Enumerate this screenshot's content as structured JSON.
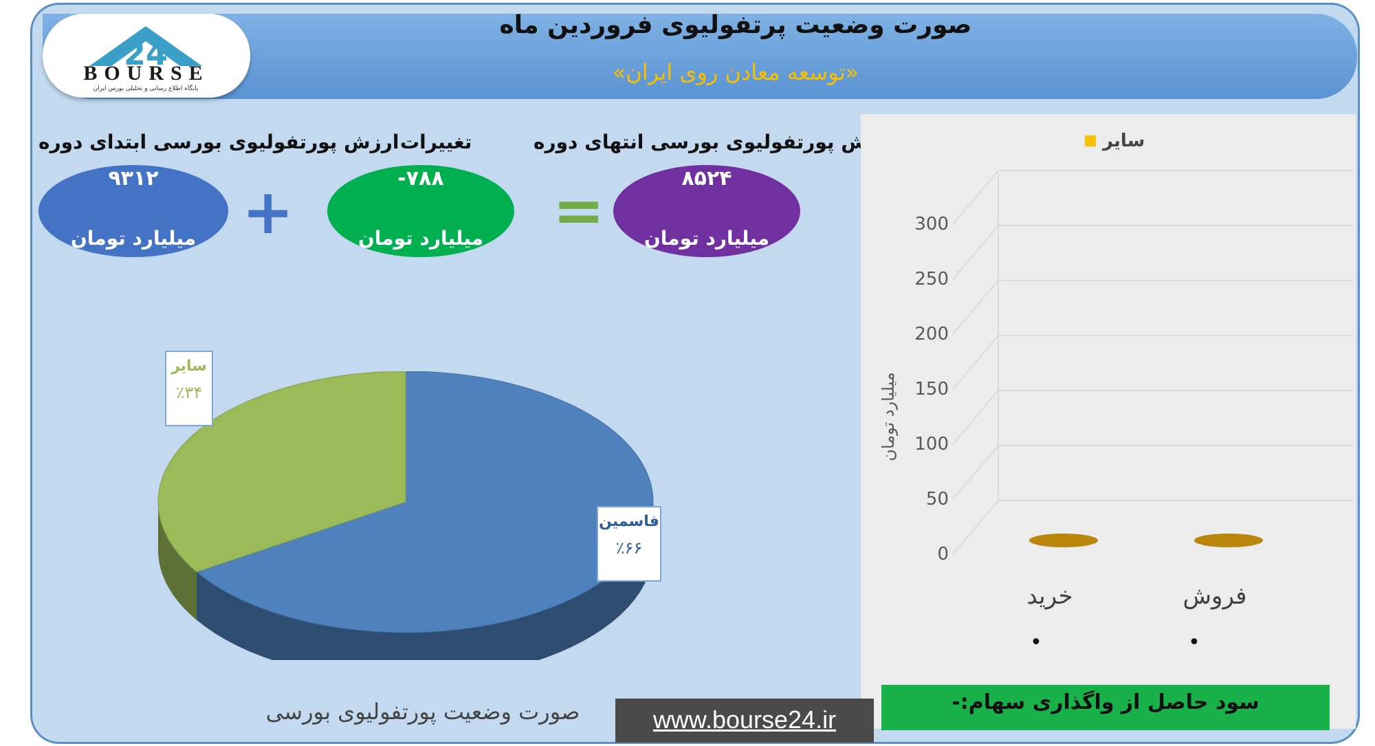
{
  "header": {
    "title": "صورت وضعیت پرتفولیوی فروردین ماه",
    "subtitle": "«توسعه معادن روی ایران»"
  },
  "logo": {
    "number": "24",
    "word": "BOURSE",
    "tagline": "پایگاه اطلاع رسانی و تحلیلی بورس ایران"
  },
  "summary": {
    "start": {
      "label": "ارزش پورتفولیوی بورسی ابتدای دوره",
      "value": "۹۳۱۲",
      "unit": "میلیارد تومان",
      "color": "#4472c4"
    },
    "change": {
      "label": "تغییرات",
      "value": "-۷۸۸",
      "unit": "میلیارد تومان",
      "color": "#00b050"
    },
    "end": {
      "label": "ارزش پورتفولیوی بورسی انتهای دوره",
      "value": "۸۵۲۴",
      "unit": "میلیارد تومان",
      "color": "#7030a0"
    },
    "plus_color": "#4472c4",
    "equals_color": "#70ad47"
  },
  "pie_caption": "صورت وضعیت پورتفولیوی بورسی",
  "website": "www.bourse24.ir",
  "profit_note": "سود حاصل از واگذاری سهام:-",
  "chart_data": [
    {
      "type": "pie",
      "categories": [
        "فاسمین",
        "سایر"
      ],
      "values": [
        66,
        34
      ],
      "data_labels": [
        "٪۶۶",
        "٪۳۴"
      ],
      "colors": [
        "#4f81bd",
        "#9bbb59"
      ],
      "style": "3d"
    },
    {
      "type": "bar",
      "style": "3d",
      "categories": [
        "خرید",
        "فروش"
      ],
      "series": [
        {
          "name": "سایر",
          "values": [
            0,
            0
          ],
          "color": "#f6c000"
        }
      ],
      "ylabel": "میلیارد تومان",
      "ylim": [
        0,
        300
      ],
      "yticks": [
        0,
        50,
        100,
        150,
        200,
        250,
        300
      ],
      "legend": "top",
      "grid": true,
      "point_labels": [
        "•",
        "•"
      ]
    }
  ]
}
